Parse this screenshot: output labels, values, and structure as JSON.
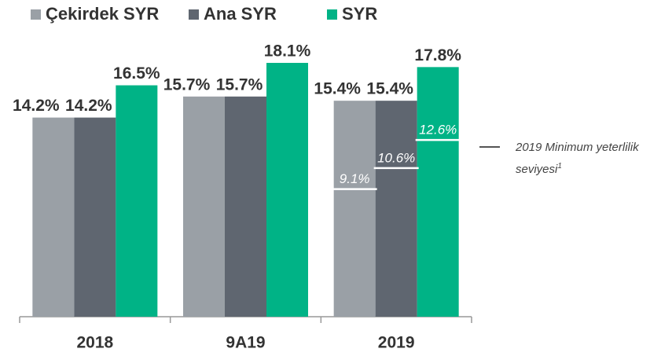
{
  "chart_data": {
    "type": "bar",
    "categories": [
      "2018",
      "9A19",
      "2019"
    ],
    "series": [
      {
        "name": "Çekirdek SYR",
        "color": "#9aa0a6",
        "values": [
          14.2,
          15.7,
          15.4
        ],
        "value_labels": [
          "14.2%",
          "15.7%",
          "15.4%"
        ]
      },
      {
        "name": "Ana SYR",
        "color": "#5f6670",
        "values": [
          14.2,
          15.7,
          15.4
        ],
        "value_labels": [
          "14.2%",
          "15.7%",
          "15.4%"
        ]
      },
      {
        "name": "SYR",
        "color": "#00b386",
        "values": [
          16.5,
          18.1,
          17.8
        ],
        "value_labels": [
          "16.5%",
          "18.1%",
          "17.8%"
        ]
      }
    ],
    "threshold": {
      "name": "2019 Minimum yeterlilik seviyesi",
      "footnote": "1",
      "color": "#ffffff",
      "values": [
        9.1,
        10.6,
        12.6
      ],
      "value_labels": [
        "9.1%",
        "10.6%",
        "12.6%"
      ]
    }
  }
}
